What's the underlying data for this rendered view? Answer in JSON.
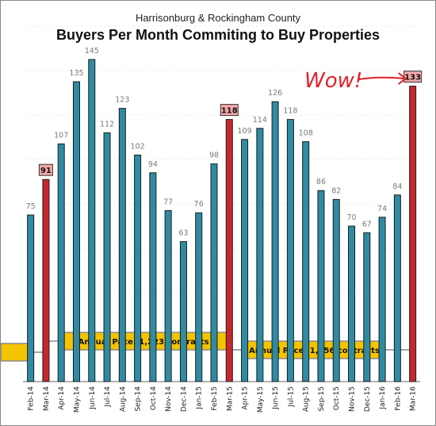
{
  "chart_data": {
    "type": "bar",
    "subtitle": "Harrisonburg & Rockingham County",
    "title": "Buyers Per Month Commiting to Buy Properties",
    "categories": [
      "Feb-14",
      "Mar-14",
      "Apr-14",
      "May-14",
      "Jun-14",
      "Jul-14",
      "Aug-14",
      "Sep-14",
      "Oct-14",
      "Nov-14",
      "Dec-14",
      "Jan-15",
      "Feb-15",
      "Mar-15",
      "Apr-15",
      "May-15",
      "Jun-15",
      "Jul-15",
      "Aug-15",
      "Sep-15",
      "Oct-15",
      "Nov-15",
      "Dec-15",
      "Jan-16",
      "Feb-16",
      "Mar-16"
    ],
    "values": [
      75,
      91,
      107,
      135,
      145,
      112,
      123,
      102,
      94,
      77,
      63,
      76,
      98,
      118,
      109,
      114,
      126,
      118,
      108,
      86,
      82,
      70,
      67,
      74,
      84,
      133
    ],
    "highlighted": [
      "Mar-14",
      "Mar-15",
      "Mar-16"
    ],
    "ylim": [
      0,
      160
    ],
    "grid": true,
    "colors": {
      "bar": "#2e8ba3",
      "highlight": "#c8262d",
      "label_box": "#f4a8a8",
      "pace_box": "#f5c400"
    },
    "annotations": [
      {
        "text": "Annual Pace: 1,223 contracts",
        "from": "Mar-14",
        "to": "Mar-15"
      },
      {
        "text": "Annual Pace: 1,156 contracts",
        "from": "Mar-15",
        "to": "Mar-16"
      }
    ],
    "callout": "Wow!"
  }
}
